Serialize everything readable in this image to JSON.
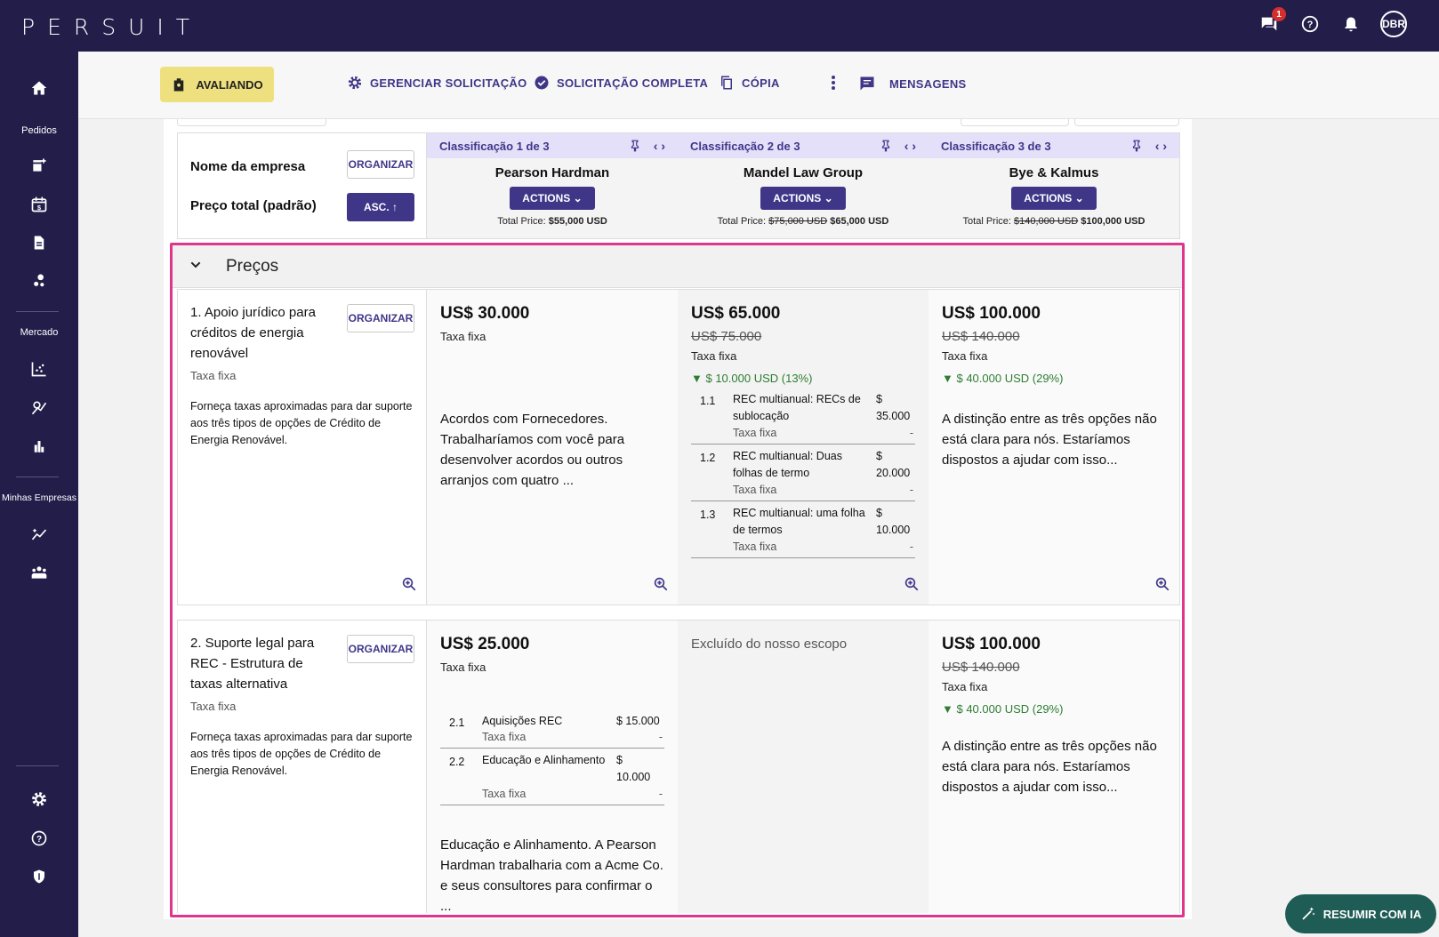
{
  "app": {
    "logo": "PERSUIT",
    "avatar_initials": "DBR",
    "message_badge": "1"
  },
  "sidebar": {
    "section_pedidos": "Pedidos",
    "section_mercado": "Mercado",
    "section_empresas": "Minhas Empresas"
  },
  "toolbar": {
    "status": "AVALIANDO",
    "manage": "GERENCIAR SOLICITAÇÃO",
    "complete": "SOLICITAÇÃO COMPLETA",
    "copy": "CÓPIA",
    "messages": "MENSAGENS"
  },
  "header": {
    "company_label": "Nome da empresa",
    "price_label": "Preço total (padrão)",
    "organize": "ORGANIZAR",
    "asc": "ASC. ↑",
    "firms": [
      {
        "rank": "Classificação 1 de 3",
        "name": "Pearson Hardman",
        "actions": "ACTIONS",
        "total_label": "Total Price:",
        "total_old": "",
        "total": "$55,000 USD"
      },
      {
        "rank": "Classificação 2 de 3",
        "name": "Mandel Law Group",
        "actions": "ACTIONS",
        "total_label": "Total Price:",
        "total_old": "$75,000 USD",
        "total": "$65,000 USD"
      },
      {
        "rank": "Classificação 3 de 3",
        "name": "Bye & Kalmus",
        "actions": "ACTIONS",
        "total_label": "Total Price:",
        "total_old": "$140,000 USD",
        "total": "$100,000 USD"
      }
    ]
  },
  "section": {
    "title": "Preços"
  },
  "rows": [
    {
      "title": "1. Apoio jurídico para créditos de energia renovável",
      "fee_type": "Taxa fixa",
      "description": "Forneça taxas aproximadas para dar suporte aos três tipos de opções de Crédito de Energia Renovável.",
      "organize": "ORGANIZAR",
      "cells": [
        {
          "price": "US$ 30.000",
          "fee": "Taxa fixa",
          "note": "Acordos com Fornecedores. Trabalharíamos com você para desenvolver acordos ou outros arranjos com quatro ..."
        },
        {
          "price": "US$ 65.000",
          "old": "US$ 75.000",
          "fee": "Taxa fixa",
          "discount": "$ 10.000 USD (13%)",
          "items": [
            {
              "n": "1.1",
              "desc": "REC multianual: RECs de sublocação",
              "val": "$ 35.000",
              "fee": "Taxa fixa",
              "dash": "-"
            },
            {
              "n": "1.2",
              "desc": "REC multianual: Duas folhas de termo",
              "val": "$ 20.000",
              "fee": "Taxa fixa",
              "dash": "-"
            },
            {
              "n": "1.3",
              "desc": "REC multianual: uma folha de termos",
              "val": "$ 10.000",
              "fee": "Taxa fixa",
              "dash": "-"
            }
          ]
        },
        {
          "price": "US$ 100.000",
          "old": "US$ 140.000",
          "fee": "Taxa fixa",
          "discount": "$ 40.000 USD (29%)",
          "note": "A distinção entre as três opções não está clara para nós. Estaríamos dispostos a ajudar com isso..."
        }
      ]
    },
    {
      "title": "2. Suporte legal para REC - Estrutura de taxas alternativa",
      "fee_type": "Taxa fixa",
      "description": "Forneça taxas aproximadas para dar suporte aos três tipos de opções de Crédito de Energia Renovável.",
      "organize": "ORGANIZAR",
      "cells": [
        {
          "price": "US$ 25.000",
          "fee": "Taxa fixa",
          "items": [
            {
              "n": "2.1",
              "desc": "Aquisições REC",
              "val": "$ 15.000",
              "fee": "Taxa fixa",
              "dash": "-"
            },
            {
              "n": "2.2",
              "desc": "Educação e Alinhamento",
              "val": "$ 10.000",
              "fee": "Taxa fixa",
              "dash": "-"
            }
          ],
          "note": "Educação e Alinhamento. A Pearson Hardman trabalharia com a Acme Co. e seus consultores para confirmar o ..."
        },
        {
          "excluded": "Excluído do nosso escopo"
        },
        {
          "price": "US$ 100.000",
          "old": "US$ 140.000",
          "fee": "Taxa fixa",
          "discount": "$ 40.000 USD (29%)",
          "note": "A distinção entre as três opções não está clara para nós. Estaríamos dispostos a ajudar com isso..."
        }
      ]
    }
  ],
  "fab": {
    "label": "RESUMIR COM IA"
  },
  "colors": {
    "brand": "#231d4a",
    "accent": "#3f3688",
    "status": "#efe07f",
    "highlight": "#e0358a",
    "discount": "#2e7d32"
  }
}
